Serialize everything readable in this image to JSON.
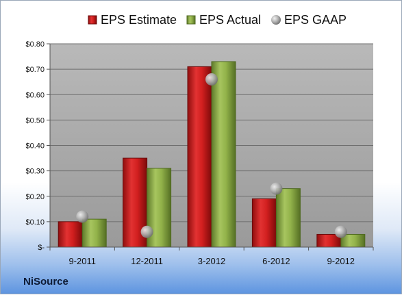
{
  "company_label": "NiSource",
  "chart_data": {
    "type": "bar",
    "categories": [
      "9-2011",
      "12-2011",
      "3-2012",
      "6-2012",
      "9-2012"
    ],
    "series": [
      {
        "name": "EPS Estimate",
        "kind": "bar",
        "color": "#cc1f1f",
        "values": [
          0.1,
          0.35,
          0.71,
          0.19,
          0.05
        ]
      },
      {
        "name": "EPS Actual",
        "kind": "bar",
        "color": "#8fb04a",
        "values": [
          0.11,
          0.31,
          0.73,
          0.23,
          0.05
        ]
      },
      {
        "name": "EPS GAAP",
        "kind": "marker",
        "color": "#b8b8b8",
        "values": [
          0.12,
          0.06,
          0.66,
          0.23,
          0.06
        ]
      }
    ],
    "ylim": [
      0,
      0.8
    ],
    "yticks": [
      0,
      0.1,
      0.2,
      0.3,
      0.4,
      0.5,
      0.6,
      0.7,
      0.8
    ],
    "ytick_labels": [
      "$-",
      "$0.10",
      "$0.20",
      "$0.30",
      "$0.40",
      "$0.50",
      "$0.60",
      "$0.70",
      "$0.80"
    ],
    "grid": true,
    "legend": "top",
    "plot_background": "#a6a6a6"
  }
}
